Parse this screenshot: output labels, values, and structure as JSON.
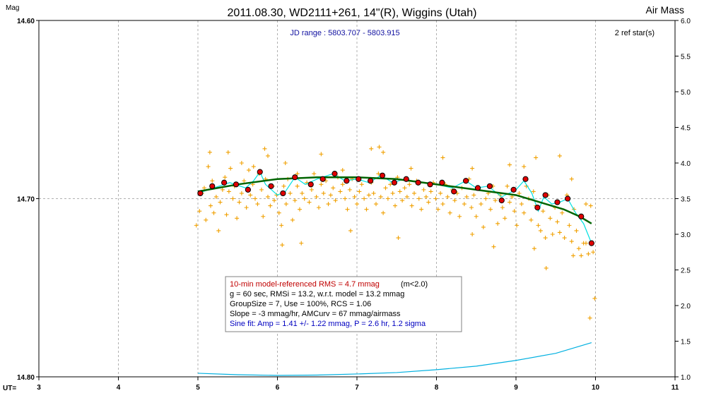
{
  "chart_data": {
    "type": "scatter",
    "title": "2011.08.30, WD2111+261, 14\"(R), Wiggins (Utah)",
    "ylabel_left": "Mag",
    "ylabel_right": "Air Mass",
    "xlabel": "UT=",
    "xlim": [
      3,
      11
    ],
    "ylim": [
      14.8,
      14.6
    ],
    "y2lim": [
      1.0,
      6.0
    ],
    "x_ticks": [
      "3",
      "4",
      "5",
      "6",
      "7",
      "8",
      "9",
      "10",
      "11"
    ],
    "y_ticks_labeled": [
      "14.60",
      "14.70",
      "14.80"
    ],
    "y2_ticks": [
      "1.0",
      "1.5",
      "2.0",
      "2.5",
      "3.0",
      "3.5",
      "4.0",
      "4.5",
      "5.0",
      "5.5",
      "6.0"
    ],
    "reference_line_y": 14.7,
    "jd_range": "JD range : 5803.707 - 5803.915",
    "ref_stars": "2 ref star(s)",
    "grid": true,
    "raw_points": [
      [
        4.98,
        14.715
      ],
      [
        5.02,
        14.707
      ],
      [
        5.05,
        14.697
      ],
      [
        5.08,
        14.694
      ],
      [
        5.1,
        14.712
      ],
      [
        5.13,
        14.682
      ],
      [
        5.16,
        14.704
      ],
      [
        5.18,
        14.69
      ],
      [
        5.2,
        14.708
      ],
      [
        5.23,
        14.699
      ],
      [
        5.26,
        14.718
      ],
      [
        5.28,
        14.702
      ],
      [
        5.31,
        14.695
      ],
      [
        5.34,
        14.688
      ],
      [
        5.36,
        14.709
      ],
      [
        5.39,
        14.696
      ],
      [
        5.41,
        14.683
      ],
      [
        5.44,
        14.7
      ],
      [
        5.46,
        14.693
      ],
      [
        5.49,
        14.711
      ],
      [
        5.52,
        14.702
      ],
      [
        5.55,
        14.697
      ],
      [
        5.58,
        14.69
      ],
      [
        5.61,
        14.705
      ],
      [
        5.64,
        14.684
      ],
      [
        5.66,
        14.698
      ],
      [
        5.69,
        14.692
      ],
      [
        5.72,
        14.7
      ],
      [
        5.75,
        14.703
      ],
      [
        5.77,
        14.686
      ],
      [
        5.8,
        14.695
      ],
      [
        5.82,
        14.71
      ],
      [
        5.85,
        14.689
      ],
      [
        5.88,
        14.699
      ],
      [
        5.91,
        14.704
      ],
      [
        5.94,
        14.693
      ],
      [
        5.96,
        14.701
      ],
      [
        5.99,
        14.698
      ],
      [
        6.02,
        14.708
      ],
      [
        6.05,
        14.715
      ],
      [
        6.08,
        14.693
      ],
      [
        6.11,
        14.703
      ],
      [
        6.13,
        14.689
      ],
      [
        6.16,
        14.697
      ],
      [
        6.19,
        14.712
      ],
      [
        6.22,
        14.701
      ],
      [
        6.25,
        14.693
      ],
      [
        6.28,
        14.706
      ],
      [
        6.31,
        14.697
      ],
      [
        6.34,
        14.7
      ],
      [
        6.37,
        14.691
      ],
      [
        6.4,
        14.702
      ],
      [
        6.43,
        14.695
      ],
      [
        6.46,
        14.686
      ],
      [
        6.49,
        14.699
      ],
      [
        6.52,
        14.705
      ],
      [
        6.55,
        14.692
      ],
      [
        6.58,
        14.697
      ],
      [
        6.61,
        14.69
      ],
      [
        6.64,
        14.703
      ],
      [
        6.67,
        14.698
      ],
      [
        6.7,
        14.694
      ],
      [
        6.73,
        14.701
      ],
      [
        6.76,
        14.688
      ],
      [
        6.79,
        14.696
      ],
      [
        6.82,
        14.692
      ],
      [
        6.85,
        14.7
      ],
      [
        6.88,
        14.706
      ],
      [
        6.91,
        14.695
      ],
      [
        6.94,
        14.689
      ],
      [
        6.97,
        14.699
      ],
      [
        7.0,
        14.703
      ],
      [
        7.03,
        14.696
      ],
      [
        7.06,
        14.692
      ],
      [
        7.09,
        14.7
      ],
      [
        7.12,
        14.706
      ],
      [
        7.15,
        14.698
      ],
      [
        7.18,
        14.691
      ],
      [
        7.21,
        14.697
      ],
      [
        7.24,
        14.703
      ],
      [
        7.27,
        14.686
      ],
      [
        7.3,
        14.699
      ],
      [
        7.33,
        14.708
      ],
      [
        7.36,
        14.694
      ],
      [
        7.39,
        14.7
      ],
      [
        7.42,
        14.692
      ],
      [
        7.45,
        14.697
      ],
      [
        7.48,
        14.704
      ],
      [
        7.51,
        14.688
      ],
      [
        7.54,
        14.696
      ],
      [
        7.57,
        14.701
      ],
      [
        7.6,
        14.694
      ],
      [
        7.63,
        14.699
      ],
      [
        7.66,
        14.692
      ],
      [
        7.69,
        14.704
      ],
      [
        7.72,
        14.697
      ],
      [
        7.75,
        14.69
      ],
      [
        7.78,
        14.7
      ],
      [
        7.81,
        14.706
      ],
      [
        7.84,
        14.695
      ],
      [
        7.87,
        14.699
      ],
      [
        7.9,
        14.702
      ],
      [
        7.93,
        14.696
      ],
      [
        7.96,
        14.691
      ],
      [
        7.99,
        14.7
      ],
      [
        8.02,
        14.706
      ],
      [
        8.05,
        14.697
      ],
      [
        8.08,
        14.703
      ],
      [
        8.11,
        14.692
      ],
      [
        8.14,
        14.699
      ],
      [
        8.17,
        14.708
      ],
      [
        8.2,
        14.695
      ],
      [
        8.23,
        14.701
      ],
      [
        8.26,
        14.697
      ],
      [
        8.29,
        14.71
      ],
      [
        8.32,
        14.694
      ],
      [
        8.35,
        14.703
      ],
      [
        8.38,
        14.699
      ],
      [
        8.41,
        14.689
      ],
      [
        8.44,
        14.705
      ],
      [
        8.47,
        14.698
      ],
      [
        8.5,
        14.71
      ],
      [
        8.53,
        14.694
      ],
      [
        8.56,
        14.703
      ],
      [
        8.59,
        14.716
      ],
      [
        8.62,
        14.7
      ],
      [
        8.65,
        14.697
      ],
      [
        8.68,
        14.706
      ],
      [
        8.71,
        14.693
      ],
      [
        8.74,
        14.701
      ],
      [
        8.77,
        14.714
      ],
      [
        8.8,
        14.698
      ],
      [
        8.83,
        14.705
      ],
      [
        8.86,
        14.711
      ],
      [
        8.89,
        14.693
      ],
      [
        8.92,
        14.702
      ],
      [
        8.95,
        14.699
      ],
      [
        8.98,
        14.707
      ],
      [
        9.01,
        14.715
      ],
      [
        9.04,
        14.697
      ],
      [
        9.07,
        14.703
      ],
      [
        9.1,
        14.708
      ],
      [
        9.13,
        14.693
      ],
      [
        9.16,
        14.7
      ],
      [
        9.19,
        14.712
      ],
      [
        9.22,
        14.696
      ],
      [
        9.25,
        14.704
      ],
      [
        9.28,
        14.715
      ],
      [
        9.31,
        14.718
      ],
      [
        9.34,
        14.707
      ],
      [
        9.37,
        14.722
      ],
      [
        9.4,
        14.698
      ],
      [
        9.43,
        14.711
      ],
      [
        9.46,
        14.72
      ],
      [
        9.49,
        14.705
      ],
      [
        9.52,
        14.713
      ],
      [
        9.55,
        14.719
      ],
      [
        9.58,
        14.708
      ],
      [
        9.61,
        14.722
      ],
      [
        9.64,
        14.698
      ],
      [
        9.67,
        14.715
      ],
      [
        9.7,
        14.724
      ],
      [
        9.73,
        14.706
      ],
      [
        9.76,
        14.718
      ],
      [
        9.79,
        14.728
      ],
      [
        9.82,
        14.711
      ],
      [
        9.85,
        14.725
      ],
      [
        9.88,
        14.703
      ],
      [
        9.91,
        14.731
      ],
      [
        9.94,
        14.704
      ],
      [
        9.97,
        14.73
      ],
      [
        5.15,
        14.674
      ],
      [
        5.38,
        14.674
      ],
      [
        5.55,
        14.68
      ],
      [
        5.7,
        14.682
      ],
      [
        5.84,
        14.672
      ],
      [
        5.88,
        14.676
      ],
      [
        6.1,
        14.68
      ],
      [
        6.25,
        14.686
      ],
      [
        6.55,
        14.675
      ],
      [
        6.82,
        14.684
      ],
      [
        7.18,
        14.672
      ],
      [
        7.28,
        14.671
      ],
      [
        7.33,
        14.674
      ],
      [
        7.68,
        14.683
      ],
      [
        8.08,
        14.677
      ],
      [
        8.45,
        14.683
      ],
      [
        8.92,
        14.681
      ],
      [
        9.1,
        14.682
      ],
      [
        9.25,
        14.677
      ],
      [
        9.55,
        14.676
      ],
      [
        9.7,
        14.689
      ],
      [
        6.06,
        14.726
      ],
      [
        6.3,
        14.725
      ],
      [
        6.92,
        14.718
      ],
      [
        7.52,
        14.722
      ],
      [
        8.45,
        14.72
      ],
      [
        8.72,
        14.727
      ],
      [
        9.23,
        14.728
      ],
      [
        9.38,
        14.739
      ],
      [
        9.72,
        14.732
      ],
      [
        9.88,
        14.725
      ],
      [
        9.82,
        14.732
      ],
      [
        9.99,
        14.756
      ],
      [
        9.93,
        14.767
      ]
    ],
    "binned_points": [
      [
        5.03,
        14.697
      ],
      [
        5.18,
        14.693
      ],
      [
        5.33,
        14.691
      ],
      [
        5.48,
        14.692
      ],
      [
        5.63,
        14.695
      ],
      [
        5.78,
        14.685
      ],
      [
        5.92,
        14.693
      ],
      [
        6.07,
        14.697
      ],
      [
        6.22,
        14.688
      ],
      [
        6.42,
        14.692
      ],
      [
        6.57,
        14.689
      ],
      [
        6.72,
        14.686
      ],
      [
        6.87,
        14.69
      ],
      [
        7.02,
        14.689
      ],
      [
        7.17,
        14.69
      ],
      [
        7.32,
        14.687
      ],
      [
        7.47,
        14.691
      ],
      [
        7.62,
        14.689
      ],
      [
        7.77,
        14.691
      ],
      [
        7.92,
        14.692
      ],
      [
        8.07,
        14.691
      ],
      [
        8.22,
        14.696
      ],
      [
        8.37,
        14.69
      ],
      [
        8.52,
        14.694
      ],
      [
        8.67,
        14.693
      ],
      [
        8.82,
        14.701
      ],
      [
        8.97,
        14.695
      ],
      [
        9.12,
        14.689
      ],
      [
        9.27,
        14.705
      ],
      [
        9.37,
        14.698
      ],
      [
        9.52,
        14.702
      ],
      [
        9.65,
        14.7
      ],
      [
        9.82,
        14.71
      ],
      [
        9.95,
        14.725
      ]
    ],
    "model_curve": [
      [
        5.0,
        14.696
      ],
      [
        5.5,
        14.692
      ],
      [
        6.0,
        14.689
      ],
      [
        6.5,
        14.688
      ],
      [
        7.0,
        14.688
      ],
      [
        7.5,
        14.689
      ],
      [
        8.0,
        14.692
      ],
      [
        8.5,
        14.695
      ],
      [
        9.0,
        14.698
      ],
      [
        9.3,
        14.702
      ],
      [
        9.6,
        14.706
      ],
      [
        9.8,
        14.71
      ],
      [
        9.95,
        14.714
      ]
    ],
    "fit_curve": [
      [
        5.0,
        14.697
      ],
      [
        5.2,
        14.694
      ],
      [
        5.4,
        14.691
      ],
      [
        5.6,
        14.694
      ],
      [
        5.7,
        14.69
      ],
      [
        5.78,
        14.685
      ],
      [
        5.85,
        14.692
      ],
      [
        6.0,
        14.698
      ],
      [
        6.1,
        14.696
      ],
      [
        6.22,
        14.688
      ],
      [
        6.35,
        14.692
      ],
      [
        6.5,
        14.689
      ],
      [
        6.7,
        14.686
      ],
      [
        6.85,
        14.69
      ],
      [
        7.0,
        14.689
      ],
      [
        7.15,
        14.691
      ],
      [
        7.3,
        14.687
      ],
      [
        7.45,
        14.691
      ],
      [
        7.6,
        14.689
      ],
      [
        7.8,
        14.691
      ],
      [
        8.0,
        14.692
      ],
      [
        8.2,
        14.694
      ],
      [
        8.37,
        14.69
      ],
      [
        8.5,
        14.694
      ],
      [
        8.65,
        14.693
      ],
      [
        8.82,
        14.699
      ],
      [
        9.0,
        14.695
      ],
      [
        9.1,
        14.69
      ],
      [
        9.2,
        14.697
      ],
      [
        9.28,
        14.707
      ],
      [
        9.35,
        14.699
      ],
      [
        9.45,
        14.703
      ],
      [
        9.55,
        14.702
      ],
      [
        9.65,
        14.7
      ],
      [
        9.75,
        14.708
      ],
      [
        9.85,
        14.714
      ],
      [
        9.95,
        14.725
      ]
    ],
    "airmass_curve": [
      [
        5.0,
        1.05
      ],
      [
        5.5,
        1.03
      ],
      [
        6.0,
        1.02
      ],
      [
        6.5,
        1.025
      ],
      [
        7.0,
        1.04
      ],
      [
        7.5,
        1.06
      ],
      [
        8.0,
        1.1
      ],
      [
        8.5,
        1.15
      ],
      [
        9.0,
        1.23
      ],
      [
        9.5,
        1.33
      ],
      [
        9.95,
        1.48
      ]
    ],
    "stats_box": {
      "line1_red": "10-min model-referenced RMS = 4.7 mmag",
      "line1_black": "(m<2.0)",
      "line2": "g = 60 sec, RMSi = 13.2, w.r.t. model = 13.2 mmag",
      "line3": "GroupSize = 7, Use = 100%, RCS = 1.06",
      "line4": "Slope = -3 mmag/hr, AMCurv = 67 mmag/airmass",
      "line5": "Sine fit: Amp = 1.41 +/- 1.22 mmag, P = 2.6 hr, 1.2 sigma"
    },
    "colors": {
      "raw": "#f0a000",
      "binned_fill": "#e00000",
      "model": "#006400",
      "fit": "#00e0e0",
      "airmass": "#00b0e0",
      "grid": "#b0b0b0",
      "stat_red": "#c00000",
      "stat_blue": "#0000c0"
    }
  }
}
